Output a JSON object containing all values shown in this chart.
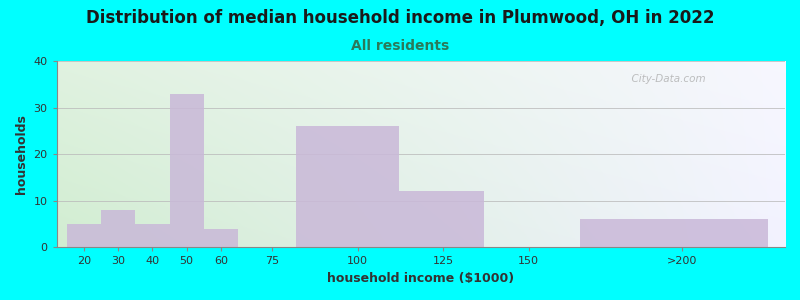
{
  "title": "Distribution of median household income in Plumwood, OH in 2022",
  "subtitle": "All residents",
  "xlabel": "household income ($1000)",
  "ylabel": "households",
  "background_color": "#00FFFF",
  "bar_color": "#c9b8d8",
  "categories": [
    "20",
    "30",
    "40",
    "50",
    "60",
    "75",
    "100",
    "125",
    "150",
    ">200"
  ],
  "values": [
    5,
    8,
    5,
    33,
    4,
    0,
    26,
    12,
    0,
    6
  ],
  "bar_left_edges": [
    15,
    25,
    35,
    45,
    55,
    65,
    82,
    112,
    137,
    165
  ],
  "bar_widths": [
    10,
    10,
    10,
    10,
    10,
    17,
    30,
    25,
    25,
    55
  ],
  "xtick_labels": [
    "20",
    "30",
    "40",
    "50",
    "60",
    "75",
    "100",
    "125",
    "150",
    ">200"
  ],
  "xtick_positions": [
    20,
    30,
    40,
    50,
    60,
    75,
    100,
    125,
    150,
    195
  ],
  "xlim": [
    12,
    225
  ],
  "ylim": [
    0,
    40
  ],
  "yticks": [
    0,
    10,
    20,
    30,
    40
  ],
  "grid_color": "#bbbbbb",
  "title_fontsize": 12,
  "subtitle_fontsize": 10,
  "axis_label_fontsize": 9,
  "tick_fontsize": 8,
  "watermark_text": "  City-Data.com"
}
